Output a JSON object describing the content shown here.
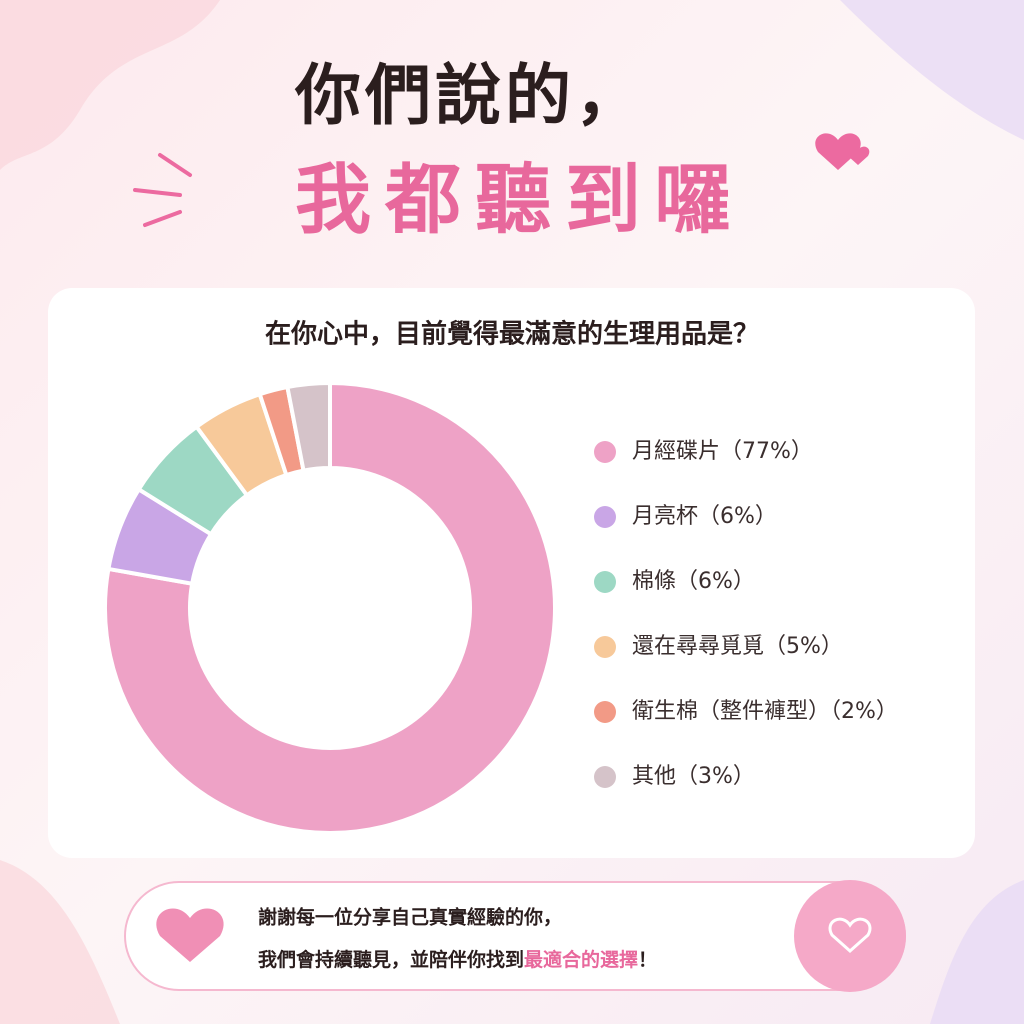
{
  "header": {
    "line1": "你們說的，",
    "line2": "我都聽到囉"
  },
  "chart_data": {
    "type": "donut",
    "title": "在你心中，目前覺得最滿意的生理用品是？",
    "categories": [
      "月經碟片",
      "月亮杯",
      "棉條",
      "還在尋尋覓覓",
      "衛生棉（整件褲型）",
      "其他"
    ],
    "values": [
      77,
      6,
      6,
      5,
      2,
      3
    ],
    "value_labels": [
      "（77%）",
      "（6%）",
      "（6%）",
      "（5%）",
      "（2%）",
      "（3%）"
    ],
    "colors": [
      "#eea2c6",
      "#c9a6e6",
      "#9dd8c4",
      "#f7c99a",
      "#f29a86",
      "#d5c3c9"
    ]
  },
  "footer": {
    "line1": "謝謝每一位分享自己真實經驗的你，",
    "line2_start": "我們會持續聽見，並陪伴你找到",
    "line2_highlight": "最適合的選擇",
    "line2_end": "！"
  }
}
